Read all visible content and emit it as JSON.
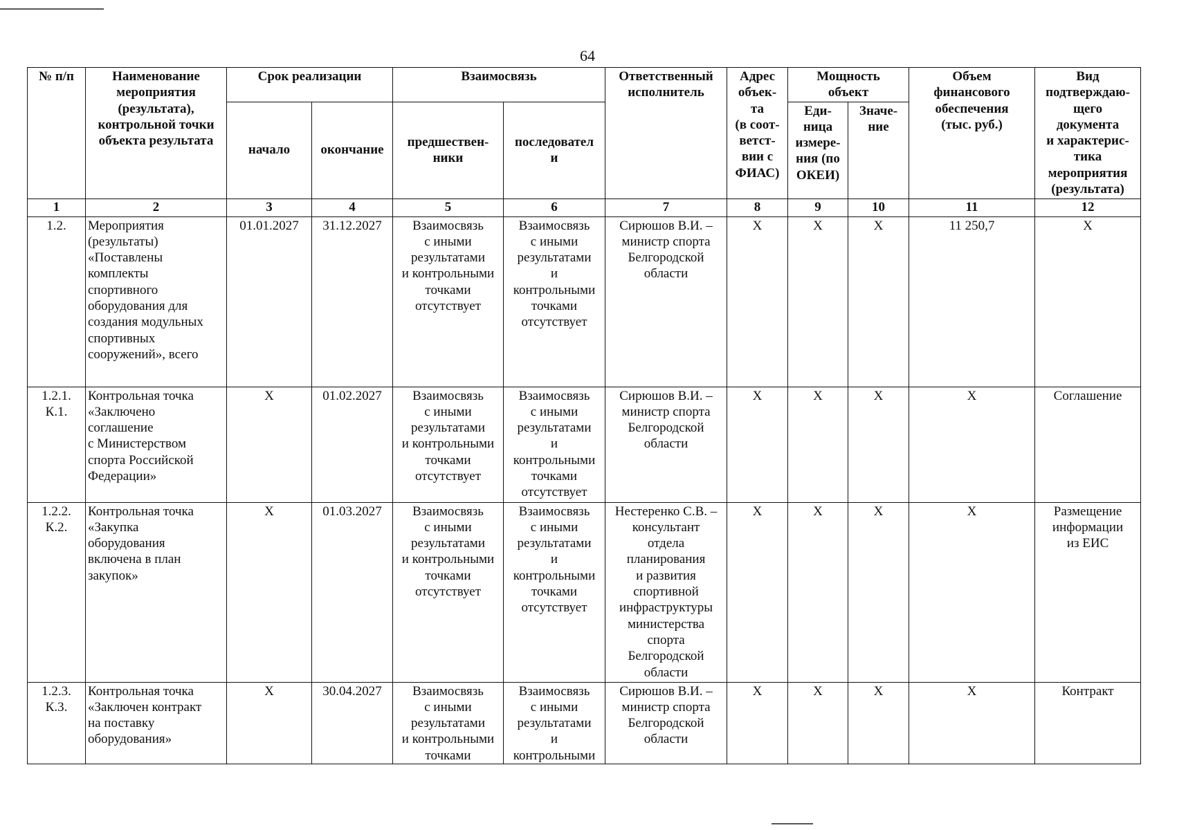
{
  "page_number": "64",
  "header": {
    "col1": "№ п/п",
    "col2": "Наименование\nмероприятия\n(результата),\nконтрольной точки\nобъекта результата",
    "term_group": "Срок реализации",
    "col3": "начало",
    "col4": "окончание",
    "link_group": "Взаимосвязь",
    "col5": "предшествен-\nники",
    "col6": "последовател\nи",
    "col7": "Ответственный\nисполнитель",
    "col8": "Адрес\nобъек-\nта\n(в соот-\nветст-\nвии с\nФИАС)",
    "power_group": "Мощность\nобъект",
    "col9": "Еди-\nница\nизмере-\nния (по\nОКЕИ)",
    "col10": "Значе-\nние",
    "col11": "Объем\nфинансового\nобеспечения\n(тыс. руб.)",
    "col12": "Вид\nподтверждаю-\nщего\nдокумента\nи характерис-\nтика\nмероприятия\n(результата)"
  },
  "column_numbers": [
    "1",
    "2",
    "3",
    "4",
    "5",
    "6",
    "7",
    "8",
    "9",
    "10",
    "11",
    "12"
  ],
  "rows": [
    {
      "num": "1.2.",
      "name": "Мероприятия\n(результаты)\n«Поставлены\nкомплекты\nспортивного\nоборудования для\nсоздания модульных\nспортивных\nсооружений», всего",
      "start": "01.01.2027",
      "end": "31.12.2027",
      "pred": "Взаимосвязь\nс иными\nрезультатами\nи контрольными\nточками\nотсутствует",
      "succ": "Взаимосвязь\nс иными\nрезультатами\nи\nконтрольными\nточками\nотсутствует",
      "resp": "Сирюшов В.И. –\nминистр спорта\nБелгородской\nобласти",
      "addr": "X",
      "unit": "X",
      "value": "X",
      "finance": "11 250,7",
      "doc": "X"
    },
    {
      "num": "1.2.1.\nК.1.",
      "name": "Контрольная точка\n«Заключено\nсоглашение\nс Министерством\nспорта Российской\nФедерации»",
      "start": "X",
      "end": "01.02.2027",
      "pred": "Взаимосвязь\nс иными\nрезультатами\nи контрольными\nточками\nотсутствует",
      "succ": "Взаимосвязь\nс иными\nрезультатами\nи\nконтрольными\nточками\nотсутствует",
      "resp": "Сирюшов В.И. –\nминистр спорта\nБелгородской\nобласти",
      "addr": "X",
      "unit": "X",
      "value": "X",
      "finance": "X",
      "doc": "Соглашение"
    },
    {
      "num": "1.2.2.\nК.2.",
      "name": "Контрольная точка\n«Закупка\nоборудования\nвключена в план\nзакупок»",
      "start": "X",
      "end": "01.03.2027",
      "pred": "Взаимосвязь\nс иными\nрезультатами\nи контрольными\nточками\nотсутствует",
      "succ": "Взаимосвязь\nс иными\nрезультатами\nи\nконтрольными\nточками\nотсутствует",
      "resp": "Нестеренко С.В. –\nконсультант\nотдела\nпланирования\nи развития\nспортивной\nинфраструктуры\nминистерства\nспорта\nБелгородской\nобласти",
      "addr": "X",
      "unit": "X",
      "value": "X",
      "finance": "X",
      "doc": "Размещение\nинформации\nиз ЕИС"
    },
    {
      "num": "1.2.3.\nК.3.",
      "name": "Контрольная точка\n«Заключен контракт\nна поставку\nоборудования»",
      "start": "X",
      "end": "30.04.2027",
      "pred": "Взаимосвязь\nс иными\nрезультатами\nи контрольными\nточками",
      "succ": "Взаимосвязь\nс иными\nрезультатами\nи\nконтрольными",
      "resp": "Сирюшов В.И. –\nминистр спорта\nБелгородской\nобласти",
      "addr": "X",
      "unit": "X",
      "value": "X",
      "finance": "X",
      "doc": "Контракт"
    }
  ]
}
